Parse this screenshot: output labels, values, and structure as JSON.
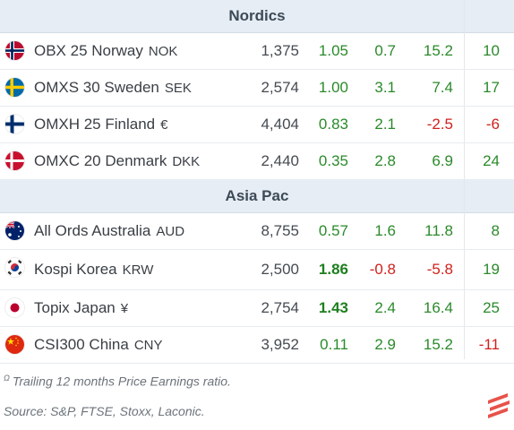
{
  "sections": [
    {
      "title": "Nordics",
      "rows": [
        {
          "flag": "flag-norway-icon",
          "name": "OBX 25 Norway",
          "currency": "NOK",
          "price": "1,375",
          "pe": "1.05",
          "pe_bold": false,
          "v1": "0.7",
          "v2": "15.2",
          "v3": "10"
        },
        {
          "flag": "flag-sweden-icon",
          "name": "OMXS 30 Sweden",
          "currency": "SEK",
          "price": "2,574",
          "pe": "1.00",
          "pe_bold": false,
          "v1": "3.1",
          "v2": "7.4",
          "v3": "17"
        },
        {
          "flag": "flag-finland-icon",
          "name": "OMXH 25 Finland",
          "currency": "€",
          "price": "4,404",
          "pe": "0.83",
          "pe_bold": false,
          "v1": "2.1",
          "v2": "-2.5",
          "v3": "-6"
        },
        {
          "flag": "flag-denmark-icon",
          "name": "OMXC 20 Denmark",
          "currency": "DKK",
          "price": "2,440",
          "pe": "0.35",
          "pe_bold": false,
          "v1": "2.8",
          "v2": "6.9",
          "v3": "24"
        }
      ]
    },
    {
      "title": "Asia Pac",
      "rows": [
        {
          "flag": "flag-australia-icon",
          "name": "All Ords Australia",
          "currency": "AUD",
          "price": "8,755",
          "pe": "0.57",
          "pe_bold": false,
          "v1": "1.6",
          "v2": "11.8",
          "v3": "8"
        },
        {
          "flag": "flag-korea-icon",
          "name": "Kospi Korea",
          "currency": "KRW",
          "price": "2,500",
          "pe": "1.86",
          "pe_bold": true,
          "v1": "-0.8",
          "v2": "-5.8",
          "v3": "19"
        },
        {
          "flag": "flag-japan-icon",
          "name": "Topix Japan",
          "currency": "¥",
          "price": "2,754",
          "pe": "1.43",
          "pe_bold": true,
          "v1": "2.4",
          "v2": "16.4",
          "v3": "25"
        },
        {
          "flag": "flag-china-icon",
          "name": "CSI300 China",
          "currency": "CNY",
          "price": "3,952",
          "pe": "0.11",
          "pe_bold": false,
          "v1": "2.9",
          "v2": "15.2",
          "v3": "-11"
        }
      ]
    }
  ],
  "footer": {
    "note_marker": "Ω",
    "note": "Trailing 12 months Price Earnings ratio.",
    "source": "Source: S&P, FTSE, Stoxx, Laconic.",
    "logo": "laconic-logo-icon"
  },
  "colors": {
    "positive": "#2a8a2a",
    "negative": "#d0211c",
    "header_bg": "#e6edf4"
  }
}
